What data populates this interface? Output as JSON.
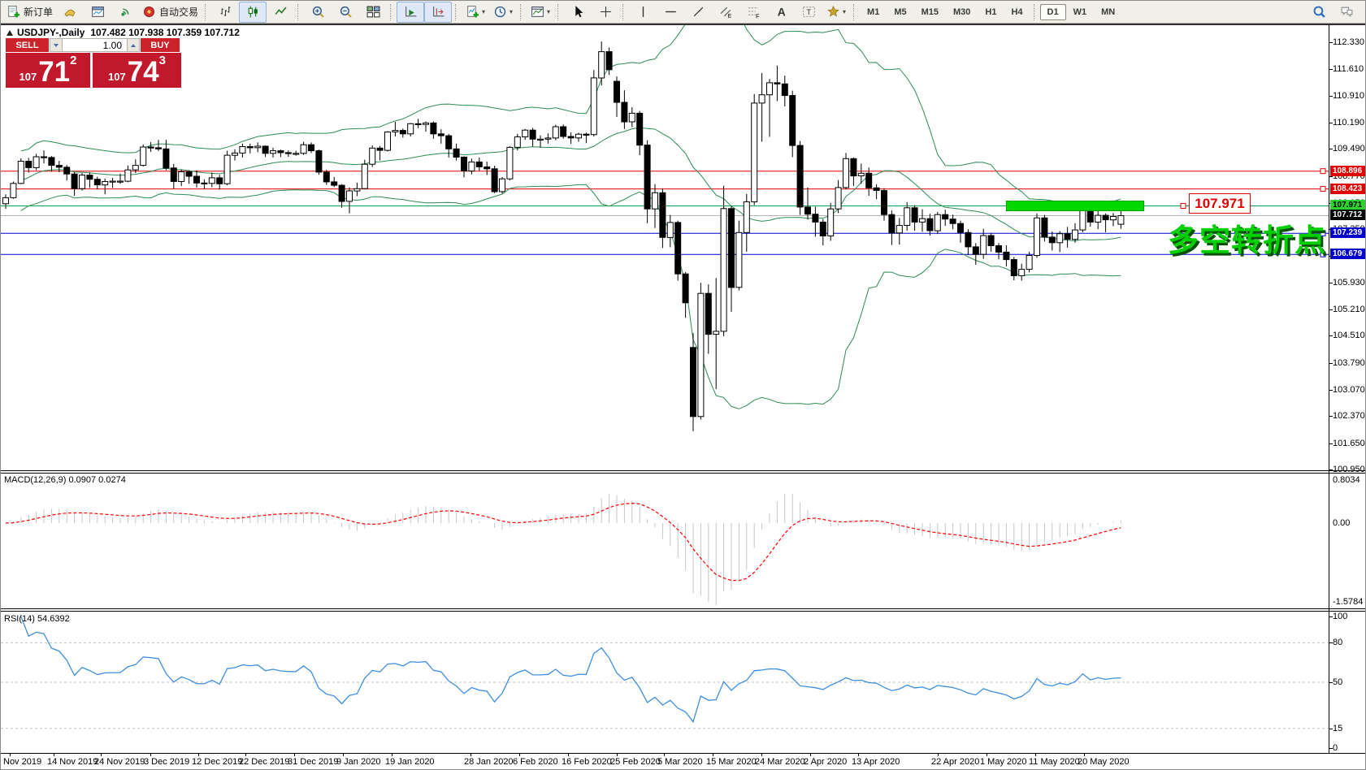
{
  "toolbar": {
    "groups": [
      {
        "items": [
          {
            "name": "new-order",
            "label": "新订单"
          },
          {
            "name": "expert-advisors"
          },
          {
            "name": "data-window"
          },
          {
            "name": "signals"
          },
          {
            "name": "autotrading",
            "label": "自动交易"
          }
        ]
      },
      {
        "items": [
          {
            "name": "bar-chart"
          },
          {
            "name": "candlestick-chart",
            "active": true
          },
          {
            "name": "line-chart"
          }
        ]
      },
      {
        "items": [
          {
            "name": "zoom-in"
          },
          {
            "name": "zoom-out"
          },
          {
            "name": "tile-windows"
          }
        ]
      },
      {
        "items": [
          {
            "name": "auto-scroll",
            "active": true
          },
          {
            "name": "chart-shift",
            "active": true
          }
        ]
      },
      {
        "items": [
          {
            "name": "new-chart",
            "dropdown": true
          },
          {
            "name": "periods",
            "dropdown": true
          }
        ]
      },
      {
        "items": [
          {
            "name": "templates",
            "dropdown": true
          }
        ]
      },
      {
        "items": [
          {
            "name": "cursor"
          },
          {
            "name": "crosshair"
          }
        ]
      },
      {
        "items": [
          {
            "name": "vertical-line"
          },
          {
            "name": "horizontal-line"
          },
          {
            "name": "trendline"
          },
          {
            "name": "equidistant-channel"
          },
          {
            "name": "fibonacci-retracement"
          },
          {
            "name": "text"
          },
          {
            "name": "text-label"
          },
          {
            "name": "arrows",
            "dropdown": true
          }
        ]
      }
    ],
    "timeframes": [
      "M1",
      "M5",
      "M15",
      "M30",
      "H1",
      "H4",
      "D1",
      "W1",
      "MN"
    ],
    "active_timeframe": "D1",
    "right_icons": [
      "search",
      "chat"
    ]
  },
  "chart": {
    "symbol_title": "USDJPY-,Daily",
    "ohlc": "107.482 107.938 107.359 107.712",
    "trade_panel": {
      "sell": "SELL",
      "buy": "BUY",
      "volume": "1.00",
      "sell_small": "107",
      "sell_big": "71",
      "sell_sup": "2",
      "buy_small": "107",
      "buy_big": "74",
      "buy_sup": "3"
    },
    "annotation": "多空转折点",
    "range_label": "107.971",
    "current_price": 107.712,
    "hlines": [
      {
        "price": 108.896,
        "color": "red"
      },
      {
        "price": 108.423,
        "color": "red"
      },
      {
        "price": 107.971,
        "color": "green"
      },
      {
        "price": 107.239,
        "color": "blue"
      },
      {
        "price": 106.679,
        "color": "blue"
      }
    ],
    "colors": {
      "hline_red": "#e00000",
      "hline_blue": "#0000cd",
      "hline_green": "#00a651",
      "current": "#b4b4b4",
      "bollinger": "#2e8b57",
      "rect": "#00d600",
      "macd_hist": "#c6c6c6",
      "macd_signal": "#ff0000",
      "rsi_line": "#3e8ede",
      "level_dash": "#c0c0c0"
    }
  },
  "price_axis": {
    "ticks": [
      "112.330",
      "111.610",
      "110.910",
      "110.190",
      "109.490",
      "108.770",
      "108.050",
      "107.350",
      "106.630",
      "105.930",
      "105.210",
      "104.510",
      "103.790",
      "103.070",
      "102.370",
      "101.650",
      "100.950"
    ],
    "badges": [
      {
        "text": "108.896",
        "type": "red"
      },
      {
        "text": "108.423",
        "type": "red"
      },
      {
        "text": "107.971",
        "type": "green"
      },
      {
        "text": "107.712",
        "type": "black"
      },
      {
        "text": "107.239",
        "type": "blue"
      },
      {
        "text": "106.679",
        "type": "blue"
      }
    ]
  },
  "macd_pane": {
    "title": "MACD(12,26,9) 0.0907 0.0274",
    "axis": [
      "0.8034",
      "0.00",
      "-1.5784"
    ]
  },
  "rsi_pane": {
    "title": "RSI(14) 54.6392",
    "axis": [
      "100",
      "80",
      "50",
      "15",
      "0"
    ],
    "levels": [
      80,
      50,
      15
    ]
  },
  "date_axis": {
    "labels": [
      "Nov 2019",
      "14 Nov 2019",
      "24 Nov 2019",
      "3 Dec 2019",
      "12 Dec 2019",
      "22 Dec 2019",
      "31 Dec 2019",
      "9 Jan 2020",
      "19 Jan 2020",
      "28 Jan 2020",
      "6 Feb 2020",
      "16 Feb 2020",
      "25 Feb 2020",
      "5 Mar 2020",
      "15 Mar 2020",
      "24 Mar 2020",
      "2 Apr 2020",
      "13 Apr 2020",
      "22 Apr 2020",
      "1 May 2020",
      "11 May 2020",
      "20 May 2020"
    ]
  },
  "chart_data": {
    "type": "candlestick",
    "symbol": "USDJPY",
    "period": "Daily",
    "y_range": [
      100.95,
      112.33
    ],
    "indicators": [
      {
        "name": "Bollinger Bands",
        "period": 20,
        "deviation": 2
      },
      {
        "name": "MACD",
        "fast": 12,
        "slow": 26,
        "signal": 9,
        "values": [
          0.0907,
          0.0274
        ],
        "range": [
          -1.5784,
          0.8034
        ]
      },
      {
        "name": "RSI",
        "period": 14,
        "value": 54.6392,
        "range": [
          0,
          100
        ]
      }
    ],
    "x_labels": [
      "Nov 2019",
      "14 Nov 2019",
      "24 Nov 2019",
      "3 Dec 2019",
      "12 Dec 2019",
      "22 Dec 2019",
      "31 Dec 2019",
      "9 Jan 2020",
      "19 Jan 2020",
      "28 Jan 2020",
      "6 Feb 2020",
      "16 Feb 2020",
      "25 Feb 2020",
      "5 Mar 2020",
      "15 Mar 2020",
      "24 Mar 2020",
      "2 Apr 2020",
      "13 Apr 2020",
      "22 Apr 2020",
      "1 May 2020",
      "11 May 2020",
      "20 May 2020"
    ],
    "highlight_rect": {
      "price_top": 108.1,
      "price_bottom": 107.84,
      "x_from_bar": 131,
      "x_to_bar": 149
    },
    "ohlc": [
      [
        108.03,
        108.28,
        107.89,
        108.19
      ],
      [
        108.19,
        108.62,
        108.16,
        108.57
      ],
      [
        108.57,
        109.24,
        108.55,
        109.16
      ],
      [
        109.16,
        109.25,
        108.86,
        108.99
      ],
      [
        108.99,
        109.36,
        108.92,
        109.28
      ],
      [
        109.28,
        109.45,
        109.1,
        109.26
      ],
      [
        109.26,
        109.3,
        108.88,
        109.05
      ],
      [
        109.05,
        109.17,
        108.87,
        109.0
      ],
      [
        109.0,
        109.06,
        108.65,
        108.82
      ],
      [
        108.82,
        108.87,
        108.24,
        108.43
      ],
      [
        108.43,
        108.85,
        108.38,
        108.79
      ],
      [
        108.79,
        108.86,
        108.45,
        108.68
      ],
      [
        108.68,
        108.75,
        108.41,
        108.53
      ],
      [
        108.53,
        108.7,
        108.28,
        108.62
      ],
      [
        108.62,
        108.72,
        108.45,
        108.63
      ],
      [
        108.63,
        108.83,
        108.56,
        108.63
      ],
      [
        108.63,
        109.05,
        108.6,
        108.93
      ],
      [
        108.93,
        109.21,
        108.85,
        109.05
      ],
      [
        109.05,
        109.61,
        109.02,
        109.54
      ],
      [
        109.54,
        109.67,
        109.41,
        109.52
      ],
      [
        109.52,
        109.73,
        109.43,
        109.49
      ],
      [
        109.49,
        109.73,
        108.92,
        108.98
      ],
      [
        108.98,
        109.09,
        108.43,
        108.62
      ],
      [
        108.62,
        108.94,
        108.5,
        108.88
      ],
      [
        108.88,
        108.92,
        108.56,
        108.76
      ],
      [
        108.76,
        108.92,
        108.46,
        108.58
      ],
      [
        108.58,
        108.68,
        108.42,
        108.57
      ],
      [
        108.57,
        108.86,
        108.47,
        108.72
      ],
      [
        108.72,
        108.8,
        108.41,
        108.56
      ],
      [
        108.56,
        109.44,
        108.52,
        109.32
      ],
      [
        109.32,
        109.48,
        109.18,
        109.38
      ],
      [
        109.38,
        109.63,
        109.26,
        109.55
      ],
      [
        109.55,
        109.63,
        109.37,
        109.52
      ],
      [
        109.52,
        109.66,
        109.4,
        109.56
      ],
      [
        109.56,
        109.58,
        109.27,
        109.37
      ],
      [
        109.37,
        109.52,
        109.26,
        109.44
      ],
      [
        109.44,
        109.47,
        109.27,
        109.39
      ],
      [
        109.39,
        109.45,
        109.28,
        109.37
      ],
      [
        109.37,
        109.44,
        109.31,
        109.37
      ],
      [
        109.37,
        109.68,
        109.33,
        109.6
      ],
      [
        109.6,
        109.66,
        109.38,
        109.44
      ],
      [
        109.44,
        109.47,
        108.8,
        108.87
      ],
      [
        108.87,
        108.93,
        108.53,
        108.61
      ],
      [
        108.61,
        108.74,
        108.47,
        108.52
      ],
      [
        108.52,
        108.55,
        107.92,
        108.09
      ],
      [
        108.09,
        108.46,
        107.77,
        108.37
      ],
      [
        108.37,
        108.59,
        108.23,
        108.43
      ],
      [
        108.43,
        109.2,
        108.41,
        109.08
      ],
      [
        109.08,
        109.58,
        109.01,
        109.51
      ],
      [
        109.51,
        109.57,
        109.18,
        109.45
      ],
      [
        109.45,
        109.96,
        109.42,
        109.94
      ],
      [
        109.94,
        110.21,
        109.82,
        109.98
      ],
      [
        109.98,
        110.03,
        109.79,
        109.89
      ],
      [
        109.89,
        110.18,
        109.82,
        110.16
      ],
      [
        110.16,
        110.29,
        110.04,
        110.14
      ],
      [
        110.14,
        110.22,
        109.95,
        110.18
      ],
      [
        110.18,
        110.22,
        109.76,
        109.89
      ],
      [
        109.89,
        110.01,
        109.63,
        109.84
      ],
      [
        109.84,
        109.89,
        109.26,
        109.49
      ],
      [
        109.49,
        109.63,
        109.18,
        109.27
      ],
      [
        109.27,
        109.29,
        108.73,
        108.9
      ],
      [
        108.9,
        109.23,
        108.81,
        109.14
      ],
      [
        109.14,
        109.26,
        108.9,
        109.01
      ],
      [
        109.01,
        109.15,
        108.79,
        108.96
      ],
      [
        108.96,
        109.04,
        108.31,
        108.35
      ],
      [
        108.35,
        108.74,
        108.3,
        108.69
      ],
      [
        108.69,
        109.56,
        108.65,
        109.53
      ],
      [
        109.53,
        109.89,
        109.45,
        109.81
      ],
      [
        109.81,
        110.02,
        109.73,
        109.99
      ],
      [
        109.99,
        110.05,
        109.55,
        109.75
      ],
      [
        109.75,
        109.85,
        109.52,
        109.75
      ],
      [
        109.75,
        109.9,
        109.63,
        109.78
      ],
      [
        109.78,
        110.13,
        109.72,
        110.08
      ],
      [
        110.08,
        110.14,
        109.76,
        109.82
      ],
      [
        109.82,
        109.93,
        109.62,
        109.78
      ],
      [
        109.78,
        109.92,
        109.68,
        109.88
      ],
      [
        109.88,
        109.92,
        109.64,
        109.87
      ],
      [
        109.87,
        111.59,
        109.82,
        111.38
      ],
      [
        111.38,
        112.35,
        111.18,
        112.08
      ],
      [
        112.08,
        112.19,
        111.46,
        111.6
      ],
      [
        111.29,
        111.42,
        110.34,
        110.73
      ],
      [
        110.73,
        111.05,
        110.02,
        110.21
      ],
      [
        110.21,
        110.6,
        110.07,
        110.44
      ],
      [
        110.44,
        110.5,
        109.32,
        109.59
      ],
      [
        109.59,
        109.72,
        107.51,
        107.89
      ],
      [
        107.89,
        108.55,
        107.38,
        108.32
      ],
      [
        108.32,
        108.44,
        106.85,
        107.13
      ],
      [
        107.13,
        107.73,
        106.87,
        107.53
      ],
      [
        107.53,
        107.58,
        105.98,
        106.16
      ],
      [
        106.16,
        106.21,
        104.99,
        105.39
      ],
      [
        104.2,
        104.58,
        101.97,
        102.36
      ],
      [
        102.36,
        105.92,
        102.28,
        105.64
      ],
      [
        105.64,
        105.88,
        104.03,
        104.55
      ],
      [
        104.55,
        106.05,
        103.09,
        104.63
      ],
      [
        104.63,
        108.51,
        104.5,
        107.9
      ],
      [
        107.9,
        107.97,
        105.15,
        105.8
      ],
      [
        105.8,
        107.58,
        105.72,
        107.26
      ],
      [
        107.26,
        108.29,
        106.75,
        108.08
      ],
      [
        108.08,
        110.95,
        107.99,
        110.71
      ],
      [
        110.71,
        111.51,
        109.68,
        110.93
      ],
      [
        110.93,
        111.35,
        109.81,
        111.25
      ],
      [
        111.25,
        111.71,
        110.76,
        111.22
      ],
      [
        111.22,
        111.44,
        110.62,
        110.91
      ],
      [
        110.91,
        111.04,
        109.27,
        109.58
      ],
      [
        109.58,
        109.7,
        107.73,
        107.94
      ],
      [
        107.94,
        108.46,
        107.61,
        107.75
      ],
      [
        107.75,
        107.95,
        107.15,
        107.54
      ],
      [
        107.54,
        107.62,
        106.92,
        107.17
      ],
      [
        107.17,
        108.05,
        107.04,
        107.89
      ],
      [
        107.89,
        108.66,
        107.78,
        108.46
      ],
      [
        108.46,
        109.38,
        108.41,
        109.23
      ],
      [
        109.23,
        109.26,
        108.5,
        108.77
      ],
      [
        108.77,
        109.1,
        108.56,
        108.84
      ],
      [
        108.84,
        108.99,
        108.24,
        108.45
      ],
      [
        108.45,
        108.55,
        108.15,
        108.38
      ],
      [
        108.38,
        108.44,
        107.58,
        107.74
      ],
      [
        107.74,
        107.85,
        106.93,
        107.25
      ],
      [
        107.25,
        107.65,
        106.94,
        107.45
      ],
      [
        107.45,
        108.07,
        107.31,
        107.92
      ],
      [
        107.92,
        107.99,
        107.31,
        107.54
      ],
      [
        107.54,
        107.88,
        107.28,
        107.63
      ],
      [
        107.63,
        107.76,
        107.18,
        107.31
      ],
      [
        107.31,
        107.81,
        107.22,
        107.74
      ],
      [
        107.74,
        107.87,
        107.44,
        107.62
      ],
      [
        107.62,
        107.74,
        107.35,
        107.5
      ],
      [
        107.5,
        107.58,
        106.99,
        107.26
      ],
      [
        107.26,
        107.35,
        106.66,
        106.88
      ],
      [
        106.88,
        106.98,
        106.4,
        106.68
      ],
      [
        106.68,
        107.36,
        106.56,
        107.18
      ],
      [
        107.18,
        107.25,
        106.75,
        106.91
      ],
      [
        106.91,
        106.98,
        106.55,
        106.74
      ],
      [
        106.74,
        106.92,
        106.36,
        106.54
      ],
      [
        106.54,
        106.61,
        105.99,
        106.11
      ],
      [
        106.11,
        106.43,
        105.98,
        106.28
      ],
      [
        106.28,
        106.75,
        106.2,
        106.65
      ],
      [
        106.65,
        107.77,
        106.59,
        107.65
      ],
      [
        107.65,
        107.73,
        107.02,
        107.14
      ],
      [
        107.14,
        107.29,
        106.78,
        106.99
      ],
      [
        106.99,
        107.3,
        106.74,
        107.23
      ],
      [
        107.23,
        107.41,
        106.86,
        107.08
      ],
      [
        107.08,
        107.51,
        106.99,
        107.33
      ],
      [
        107.33,
        108.09,
        107.27,
        107.99
      ],
      [
        107.99,
        108.05,
        107.42,
        107.54
      ],
      [
        107.54,
        107.84,
        107.35,
        107.72
      ],
      [
        107.72,
        107.77,
        107.27,
        107.6
      ],
      [
        107.6,
        107.78,
        107.43,
        107.69
      ],
      [
        107.482,
        107.938,
        107.359,
        107.712
      ]
    ]
  }
}
